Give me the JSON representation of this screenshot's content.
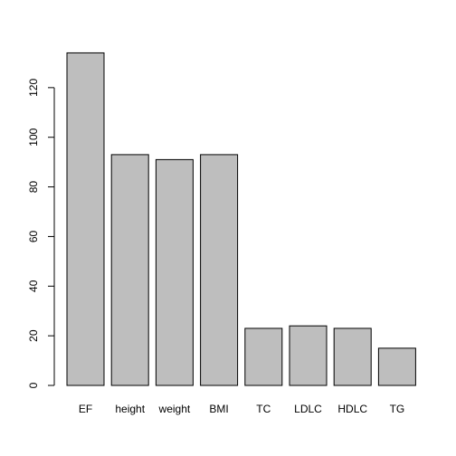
{
  "chart_data": {
    "type": "bar",
    "categories": [
      "EF",
      "height",
      "weight",
      "BMI",
      "TC",
      "LDLC",
      "HDLC",
      "TG"
    ],
    "values": [
      134,
      93,
      91,
      93,
      23,
      24,
      23,
      15
    ],
    "color": "#bebebe",
    "ylim": [
      0,
      140
    ],
    "yticks": [
      0,
      20,
      40,
      60,
      80,
      100,
      120
    ]
  }
}
